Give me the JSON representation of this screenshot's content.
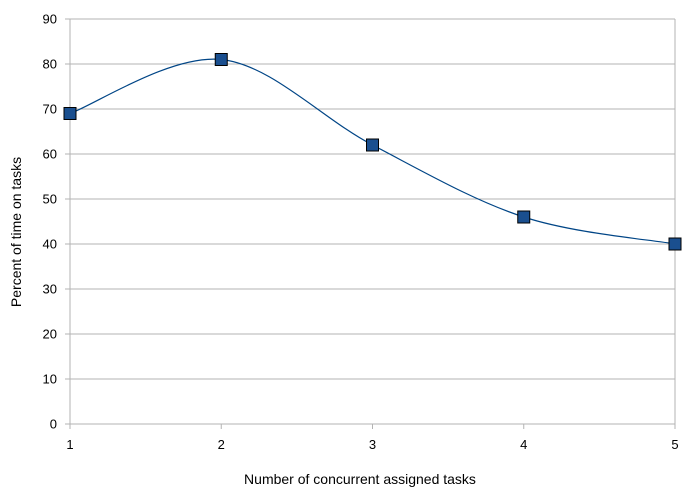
{
  "chart_data": {
    "type": "line",
    "title": "",
    "xlabel": "Number of concurrent assigned tasks",
    "ylabel": "Percent of time on tasks",
    "x": [
      1,
      2,
      3,
      4,
      5
    ],
    "series": [
      {
        "values": [
          69,
          81,
          62,
          46,
          40
        ]
      }
    ],
    "xlim": [
      1,
      5
    ],
    "ylim": [
      0,
      90
    ],
    "x_ticks": [
      "1",
      "2",
      "3",
      "4",
      "5"
    ],
    "y_ticks": [
      "0",
      "10",
      "20",
      "30",
      "40",
      "50",
      "60",
      "70",
      "80",
      "90"
    ],
    "grid": true,
    "legend": "none",
    "smoothing": "spline",
    "colors": {
      "line": "#004586",
      "marker_fill": "#1a4f8f",
      "marker_edge": "#000000",
      "grid": "#b3b3b3",
      "axis": "#b3b3b3"
    },
    "marker": "square"
  }
}
